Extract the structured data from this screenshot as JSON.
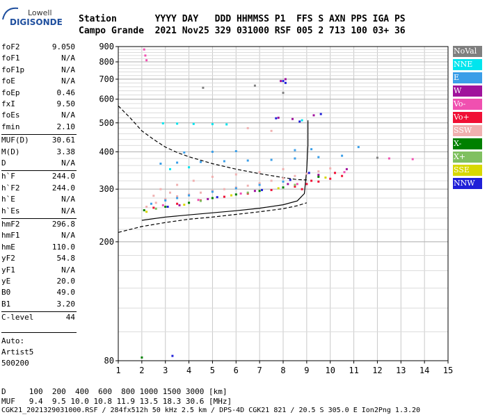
{
  "logo": {
    "brand": "Lowell",
    "product": "DIGISONDE"
  },
  "header": {
    "line1": "Station       YYYY DAY   DDD HHMMSS P1  FFS S AXN PPS IGA PS",
    "line2": "Campo Grande  2021 Nov25 329 031000 RSF 005 2 713 100 03+ 36"
  },
  "params": [
    {
      "name": "foF2",
      "value": "9.050"
    },
    {
      "name": "foF1",
      "value": "N/A"
    },
    {
      "name": "foF1p",
      "value": "N/A"
    },
    {
      "name": "foE",
      "value": "N/A"
    },
    {
      "name": "foEp",
      "value": "0.46"
    },
    {
      "name": "fxI",
      "value": "9.50"
    },
    {
      "name": "foEs",
      "value": "N/A"
    },
    {
      "name": "fmin",
      "value": "2.10"
    },
    {
      "name": "MUF(D)",
      "value": "30.61"
    },
    {
      "name": "M(D)",
      "value": "3.38"
    },
    {
      "name": "D",
      "value": "N/A"
    },
    {
      "name": "h`F",
      "value": "244.0"
    },
    {
      "name": "h`F2",
      "value": "244.0"
    },
    {
      "name": "h`E",
      "value": "N/A"
    },
    {
      "name": "h`Es",
      "value": "N/A"
    },
    {
      "name": "hmF2",
      "value": "296.8"
    },
    {
      "name": "hmF1",
      "value": "N/A"
    },
    {
      "name": "hmE",
      "value": "110.0"
    },
    {
      "name": "yF2",
      "value": "54.8"
    },
    {
      "name": "yF1",
      "value": "N/A"
    },
    {
      "name": "yE",
      "value": "20.0"
    },
    {
      "name": "B0",
      "value": "49.0"
    },
    {
      "name": "B1",
      "value": "3.20"
    },
    {
      "name": "C-level",
      "value": "44"
    }
  ],
  "autoscale": {
    "line1": "Auto:",
    "line2": "Artist5",
    "line3": "500200"
  },
  "legend": [
    {
      "label": "NoVal",
      "color": "#7f7f7f"
    },
    {
      "label": "NNE",
      "color": "#00e5ee"
    },
    {
      "label": "E",
      "color": "#3a9ee8"
    },
    {
      "label": "W",
      "color": "#a0129c"
    },
    {
      "label": "Vo-",
      "color": "#f050b0"
    },
    {
      "label": "Vo+",
      "color": "#f01035"
    },
    {
      "label": "SSW",
      "color": "#f0b0b0"
    },
    {
      "label": "X-",
      "color": "#008000"
    },
    {
      "label": "X+",
      "color": "#80c060"
    },
    {
      "label": "SSE",
      "color": "#d8d800"
    },
    {
      "label": "NNW",
      "color": "#2020d8"
    }
  ],
  "footer": {
    "d_line": "D     100  200  400  600  800 1000 1500 3000 [km]",
    "muf_line": "MUF   9.4  9.5 10.0 10.8 11.9 13.5 18.3 30.6 [MHz]",
    "file_line": "CGK21_2021329031000.RSF / 284fx512h 50 kHz 2.5 km / DPS-4D CGK21 821 / 20.5 S 305.0 E Ion2Png 1.3.20"
  },
  "chart_data": {
    "type": "scatter",
    "title": "",
    "xlabel": "",
    "ylabel": "",
    "xlim": [
      1,
      15
    ],
    "ylim": [
      80,
      900
    ],
    "x_ticks": [
      1,
      2,
      3,
      4,
      5,
      6,
      7,
      8,
      9,
      10,
      11,
      12,
      13,
      14,
      15
    ],
    "y_ticks": [
      80,
      200,
      300,
      400,
      500,
      600,
      700,
      800,
      900
    ],
    "y_scale": "log",
    "grid": true,
    "legend_position": "right",
    "series": [
      {
        "name": "SSW",
        "color": "#f0b0b0",
        "points": [
          [
            2.2,
            262
          ],
          [
            2.6,
            270
          ],
          [
            3,
            278
          ],
          [
            3.5,
            284
          ],
          [
            4,
            288
          ],
          [
            4.5,
            292
          ],
          [
            5,
            296
          ],
          [
            5.5,
            300
          ],
          [
            6,
            304
          ],
          [
            6.5,
            308
          ],
          [
            7,
            314
          ],
          [
            7.5,
            320
          ],
          [
            8,
            326
          ],
          [
            8.5,
            332
          ],
          [
            9,
            338
          ],
          [
            9.5,
            344
          ],
          [
            10,
            352
          ],
          [
            2.8,
            300
          ],
          [
            3.5,
            310
          ],
          [
            4.2,
            320
          ],
          [
            5,
            330
          ],
          [
            6,
            336
          ],
          [
            7,
            342
          ],
          [
            8,
            350
          ],
          [
            2.5,
            285
          ],
          [
            3.2,
            292
          ],
          [
            6.5,
            480
          ],
          [
            7.5,
            470
          ]
        ]
      },
      {
        "name": "E",
        "color": "#3a9ee8",
        "points": [
          [
            2.4,
            268
          ],
          [
            3,
            275
          ],
          [
            3.5,
            280
          ],
          [
            4,
            286
          ],
          [
            5,
            294
          ],
          [
            6,
            302
          ],
          [
            7,
            310
          ],
          [
            8,
            318
          ],
          [
            2.8,
            365
          ],
          [
            3.5,
            368
          ],
          [
            4.5,
            370
          ],
          [
            5.5,
            372
          ],
          [
            6.5,
            374
          ],
          [
            7.5,
            376
          ],
          [
            8.5,
            380
          ],
          [
            9.5,
            384
          ],
          [
            10.5,
            388
          ],
          [
            3.8,
            398
          ],
          [
            5,
            400
          ],
          [
            6,
            402
          ],
          [
            8.5,
            405
          ],
          [
            9.2,
            408
          ],
          [
            11.2,
            415
          ]
        ]
      },
      {
        "name": "NNE",
        "color": "#00e5ee",
        "points": [
          [
            2.9,
            498
          ],
          [
            3.5,
            497
          ],
          [
            4.2,
            496
          ],
          [
            5,
            495
          ],
          [
            5.6,
            494
          ],
          [
            8.8,
            510
          ],
          [
            3.2,
            350
          ],
          [
            4,
            355
          ]
        ]
      },
      {
        "name": "Vo+",
        "color": "#f01035",
        "points": [
          [
            2.5,
            260
          ],
          [
            3.5,
            268
          ],
          [
            4.5,
            275
          ],
          [
            5.5,
            283
          ],
          [
            6.5,
            290
          ],
          [
            7.5,
            298
          ],
          [
            8.5,
            306
          ],
          [
            9,
            312
          ],
          [
            9.5,
            318
          ],
          [
            10,
            325
          ],
          [
            10.5,
            332
          ],
          [
            8.8,
            300
          ],
          [
            9.2,
            320
          ],
          [
            10.2,
            340
          ]
        ]
      },
      {
        "name": "W",
        "color": "#a0129c",
        "points": [
          [
            3.6,
            265
          ],
          [
            4.8,
            278
          ],
          [
            6.8,
            296
          ],
          [
            8.2,
            312
          ],
          [
            9.5,
            335
          ],
          [
            10.7,
            350
          ],
          [
            7.9,
            690
          ],
          [
            8.1,
            700
          ],
          [
            7.8,
            520
          ],
          [
            8.4,
            515
          ],
          [
            9.3,
            530
          ]
        ]
      },
      {
        "name": "X-",
        "color": "#008000",
        "points": [
          [
            2.1,
            255
          ],
          [
            3,
            262
          ],
          [
            4,
            270
          ],
          [
            5,
            280
          ],
          [
            6,
            288
          ],
          [
            7,
            296
          ],
          [
            8,
            304
          ],
          [
            9.5,
            330
          ],
          [
            2,
            82
          ]
        ]
      },
      {
        "name": "X+",
        "color": "#80c060",
        "points": [
          [
            2.6,
            258
          ],
          [
            4.5,
            274
          ],
          [
            6.5,
            292
          ],
          [
            8.5,
            310
          ]
        ]
      },
      {
        "name": "SSE",
        "color": "#d8d800",
        "points": [
          [
            2.2,
            252
          ],
          [
            3.8,
            266
          ],
          [
            5.8,
            286
          ],
          [
            7.8,
            302
          ],
          [
            9.8,
            328
          ]
        ]
      },
      {
        "name": "NNW",
        "color": "#2020d8",
        "points": [
          [
            3.1,
            262
          ],
          [
            5.2,
            282
          ],
          [
            7.1,
            298
          ],
          [
            8.3,
            322
          ],
          [
            9.1,
            340
          ],
          [
            8,
            690
          ],
          [
            8.1,
            680
          ],
          [
            7.7,
            518
          ],
          [
            8.7,
            505
          ],
          [
            9.6,
            535
          ],
          [
            3.3,
            83
          ]
        ]
      },
      {
        "name": "Vo-",
        "color": "#f050b0",
        "points": [
          [
            2.1,
            880
          ],
          [
            2.15,
            840
          ],
          [
            2.2,
            810
          ],
          [
            2.9,
            265
          ],
          [
            4.4,
            276
          ],
          [
            6.2,
            290
          ],
          [
            8.6,
            312
          ],
          [
            10.6,
            342
          ],
          [
            12.5,
            380
          ],
          [
            13.5,
            378
          ]
        ]
      },
      {
        "name": "NoVal",
        "color": "#7f7f7f",
        "points": [
          [
            6.8,
            666
          ],
          [
            4.6,
            655
          ],
          [
            8,
            630
          ],
          [
            12,
            382
          ]
        ]
      }
    ],
    "curves": [
      {
        "name": "dashed",
        "style": "dashed",
        "points": [
          [
            1,
            570
          ],
          [
            1.5,
            520
          ],
          [
            2,
            470
          ],
          [
            2.5,
            440
          ],
          [
            3,
            415
          ],
          [
            3.5,
            398
          ],
          [
            4,
            385
          ],
          [
            5,
            365
          ],
          [
            6,
            350
          ],
          [
            7,
            338
          ],
          [
            8,
            328
          ],
          [
            8.6,
            323
          ],
          [
            9,
            322
          ]
        ]
      },
      {
        "name": "dashed-lower",
        "style": "dashed",
        "points": [
          [
            1,
            215
          ],
          [
            2,
            225
          ],
          [
            3,
            232
          ],
          [
            4,
            238
          ],
          [
            5,
            242
          ],
          [
            6,
            247
          ],
          [
            7,
            252
          ],
          [
            8,
            258
          ],
          [
            8.6,
            264
          ],
          [
            9,
            270
          ]
        ]
      },
      {
        "name": "solid",
        "style": "solid",
        "points": [
          [
            2,
            236
          ],
          [
            3,
            242
          ],
          [
            4,
            246
          ],
          [
            5,
            250
          ],
          [
            6,
            254
          ],
          [
            7,
            259
          ],
          [
            8,
            266
          ],
          [
            8.6,
            274
          ],
          [
            8.9,
            290
          ],
          [
            9.0,
            350
          ],
          [
            9.05,
            420
          ],
          [
            9.05,
            510
          ]
        ]
      }
    ]
  }
}
